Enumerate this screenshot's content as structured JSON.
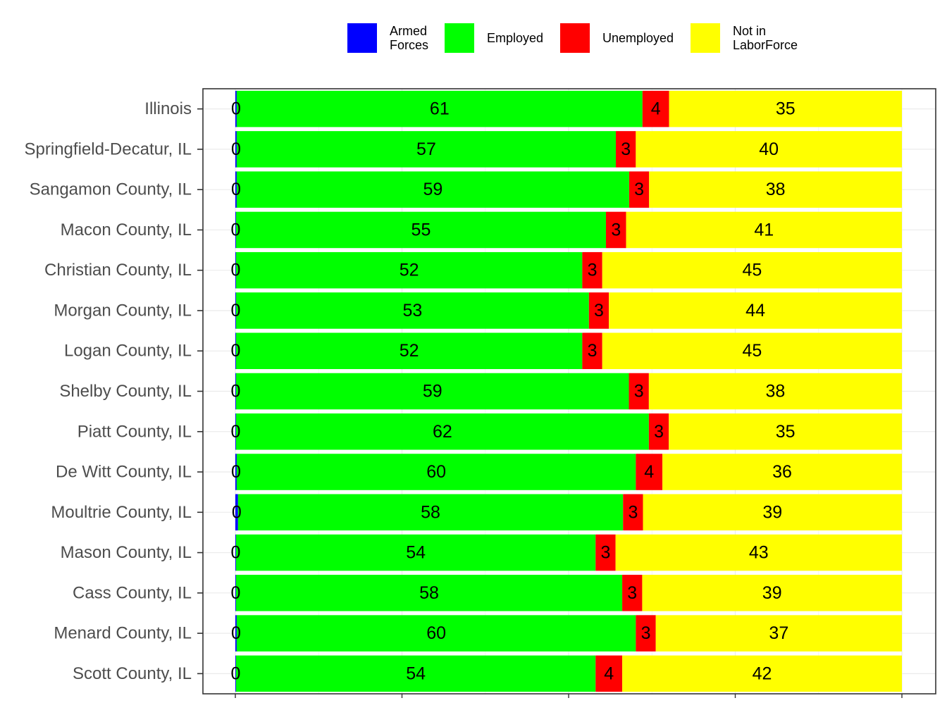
{
  "chart_data": {
    "type": "bar",
    "orientation": "horizontal",
    "stacked": true,
    "normalized_percent": true,
    "categories": [
      "Illinois",
      "Springfield-Decatur, IL",
      "Sangamon County, IL",
      "Macon County, IL",
      "Christian County, IL",
      "Morgan County, IL",
      "Logan County, IL",
      "Shelby County, IL",
      "Piatt County, IL",
      "De Witt County, IL",
      "Moultrie County, IL",
      "Mason County, IL",
      "Cass County, IL",
      "Menard County, IL",
      "Scott County, IL"
    ],
    "series": [
      {
        "name": "Armed\nForces",
        "color": "#0000ff",
        "values": [
          0.2,
          0.2,
          0.2,
          0.1,
          0.1,
          0.1,
          0.1,
          0.1,
          0.1,
          0.2,
          0.4,
          0.1,
          0.1,
          0.2,
          0.1
        ]
      },
      {
        "name": "Employed",
        "color": "#00ff00",
        "values": [
          61,
          57,
          59,
          55,
          52,
          53,
          52,
          59,
          62,
          60,
          58,
          54,
          58,
          60,
          54
        ]
      },
      {
        "name": "Unemployed",
        "color": "#ff0000",
        "values": [
          4,
          3,
          3,
          3,
          3,
          3,
          3,
          3,
          3,
          4,
          3,
          3,
          3,
          3,
          4
        ]
      },
      {
        "name": "Not in\nLaborForce",
        "color": "#ffff00",
        "values": [
          35,
          40,
          38,
          41,
          45,
          44,
          45,
          38,
          35,
          36,
          39,
          43,
          39,
          37,
          42
        ]
      }
    ],
    "labels": [
      [
        "0",
        "61",
        "4",
        "35"
      ],
      [
        "0",
        "57",
        "3",
        "40"
      ],
      [
        "0",
        "59",
        "3",
        "38"
      ],
      [
        "0",
        "55",
        "3",
        "41"
      ],
      [
        "0",
        "52",
        "3",
        "45"
      ],
      [
        "0",
        "53",
        "3",
        "44"
      ],
      [
        "0",
        "52",
        "3",
        "45"
      ],
      [
        "0",
        "59",
        "3",
        "38"
      ],
      [
        "0",
        "62",
        "3",
        "35"
      ],
      [
        "0",
        "60",
        "4",
        "36"
      ],
      [
        "0",
        "58",
        "3",
        "39"
      ],
      [
        "0",
        "54",
        "3",
        "43"
      ],
      [
        "0",
        "58",
        "3",
        "39"
      ],
      [
        "0",
        "60",
        "3",
        "37"
      ],
      [
        "0",
        "54",
        "4",
        "42"
      ]
    ],
    "xlim": [
      0,
      100
    ],
    "grid": true,
    "legend_position": "top",
    "title": "",
    "xlabel": "",
    "ylabel": ""
  }
}
